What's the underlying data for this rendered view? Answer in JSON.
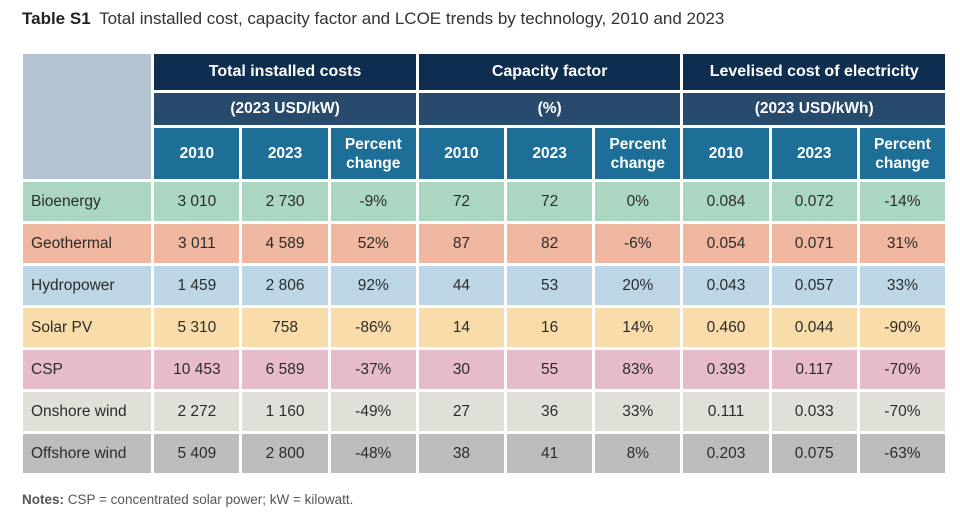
{
  "caption": {
    "label": "Table S1",
    "text": "Total installed cost, capacity factor and LCOE trends by technology, 2010 and 2023"
  },
  "groups": [
    {
      "title": "Total installed costs",
      "unit": "(2023 USD/kW)"
    },
    {
      "title": "Capacity factor",
      "unit": "(%)"
    },
    {
      "title": "Levelised cost of electricity",
      "unit": "(2023 USD/kWh)"
    }
  ],
  "subheaders": {
    "year_a": "2010",
    "year_b": "2023",
    "pct_line1": "Percent",
    "pct_line2": "change"
  },
  "rows": [
    {
      "name": "Bioenergy",
      "values": [
        "3 010",
        "2 730",
        "-9%",
        "72",
        "72",
        "0%",
        "0.084",
        "0.072",
        "-14%"
      ]
    },
    {
      "name": "Geothermal",
      "values": [
        "3 011",
        "4 589",
        "52%",
        "87",
        "82",
        "-6%",
        "0.054",
        "0.071",
        "31%"
      ]
    },
    {
      "name": "Hydropower",
      "values": [
        "1 459",
        "2 806",
        "92%",
        "44",
        "53",
        "20%",
        "0.043",
        "0.057",
        "33%"
      ]
    },
    {
      "name": "Solar PV",
      "values": [
        "5 310",
        "758",
        "-86%",
        "14",
        "16",
        "14%",
        "0.460",
        "0.044",
        "-90%"
      ]
    },
    {
      "name": "CSP",
      "values": [
        "10 453",
        "6 589",
        "-37%",
        "30",
        "55",
        "83%",
        "0.393",
        "0.117",
        "-70%"
      ]
    },
    {
      "name": "Onshore wind",
      "values": [
        "2 272",
        "1 160",
        "-49%",
        "27",
        "36",
        "33%",
        "0.111",
        "0.033",
        "-70%"
      ]
    },
    {
      "name": "Offshore wind",
      "values": [
        "5 409",
        "2 800",
        "-48%",
        "38",
        "41",
        "8%",
        "0.203",
        "0.075",
        "-63%"
      ]
    }
  ],
  "notes": {
    "label": "Notes:",
    "text": "CSP = concentrated solar power; kW = kilowatt."
  }
}
